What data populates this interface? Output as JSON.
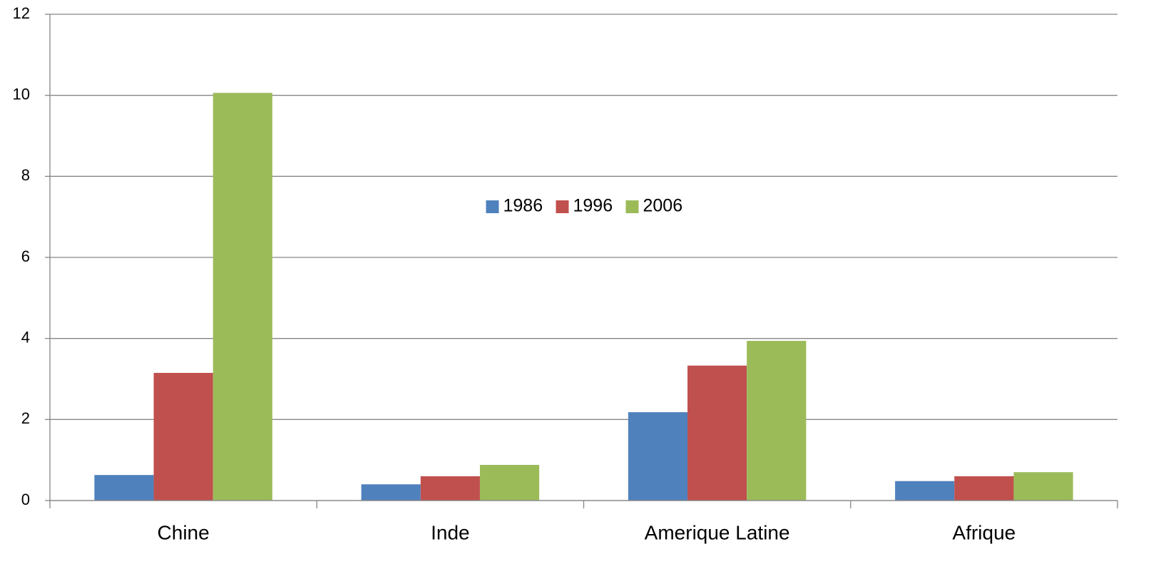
{
  "chart_data": {
    "type": "bar",
    "categories": [
      "Chine",
      "Inde",
      "Amerique Latine",
      "Afrique"
    ],
    "series": [
      {
        "name": "1986",
        "color": "#4f81bd",
        "values": [
          0.63,
          0.4,
          2.18,
          0.48
        ]
      },
      {
        "name": "1996",
        "color": "#c0504d",
        "values": [
          3.15,
          0.6,
          3.33,
          0.6
        ]
      },
      {
        "name": "2006",
        "color": "#9bbb59",
        "values": [
          10.06,
          0.88,
          3.94,
          0.7
        ]
      }
    ],
    "ylim": [
      0,
      12
    ],
    "yticks": [
      0,
      2,
      4,
      6,
      8,
      10,
      12
    ],
    "grid": true,
    "legend": "center"
  }
}
